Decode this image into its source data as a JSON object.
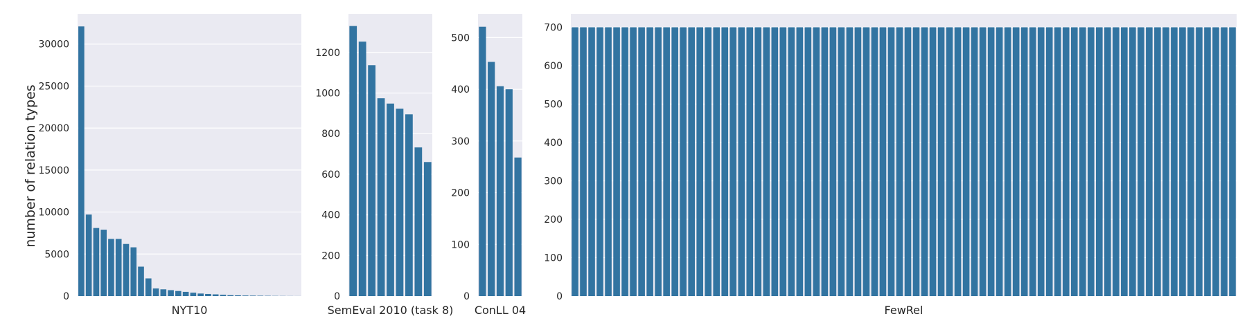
{
  "figure": {
    "ylabel": "number of relation types",
    "background": "#eaeaf2",
    "grid_color": "#ffffff",
    "bar_color": "#3274a1",
    "text_color": "#262626"
  },
  "chart_data": [
    {
      "type": "bar",
      "xlabel": "NYT10",
      "ylim": [
        0,
        33600
      ],
      "yticks": [
        0,
        5000,
        10000,
        15000,
        20000,
        25000,
        30000
      ],
      "grid": true,
      "values": [
        32100,
        9700,
        8100,
        7900,
        6800,
        6800,
        6200,
        5800,
        3500,
        2100,
        900,
        800,
        700,
        600,
        500,
        400,
        300,
        250,
        200,
        150,
        100,
        80,
        60,
        50,
        40,
        30,
        20,
        15,
        10,
        5
      ]
    },
    {
      "type": "bar",
      "xlabel": "SemEval 2010 (task 8)",
      "ylim": [
        0,
        1390
      ],
      "yticks": [
        0,
        200,
        400,
        600,
        800,
        1000,
        1200
      ],
      "grid": true,
      "values": [
        1330,
        1253,
        1137,
        974,
        948,
        923,
        895,
        732,
        660
      ]
    },
    {
      "type": "bar",
      "xlabel": "ConLL 04",
      "ylim": [
        0,
        546
      ],
      "yticks": [
        0,
        100,
        200,
        300,
        400,
        500
      ],
      "grid": true,
      "values": [
        521,
        453,
        406,
        400,
        268
      ]
    },
    {
      "type": "bar",
      "xlabel": "FewRel",
      "ylim": [
        0,
        735
      ],
      "yticks": [
        0,
        100,
        200,
        300,
        400,
        500,
        600,
        700
      ],
      "grid": true,
      "values": [
        700,
        700,
        700,
        700,
        700,
        700,
        700,
        700,
        700,
        700,
        700,
        700,
        700,
        700,
        700,
        700,
        700,
        700,
        700,
        700,
        700,
        700,
        700,
        700,
        700,
        700,
        700,
        700,
        700,
        700,
        700,
        700,
        700,
        700,
        700,
        700,
        700,
        700,
        700,
        700,
        700,
        700,
        700,
        700,
        700,
        700,
        700,
        700,
        700,
        700,
        700,
        700,
        700,
        700,
        700,
        700,
        700,
        700,
        700,
        700,
        700,
        700,
        700,
        700,
        700,
        700,
        700,
        700,
        700,
        700,
        700,
        700,
        700,
        700,
        700,
        700,
        700,
        700,
        700,
        700
      ]
    }
  ]
}
